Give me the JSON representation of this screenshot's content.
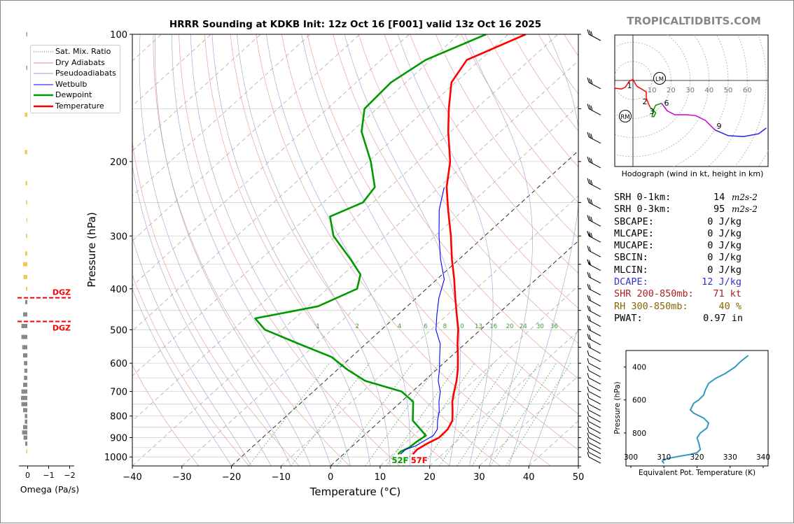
{
  "title": "HRRR Sounding at KDKB Init: 12z Oct 16 [F001] valid 13z Oct 16 2025",
  "brand": "TROPICALTIDBITS.COM",
  "legend": [
    "Sat. Mix. Ratio",
    "Dry Adiabats",
    "Pseudoadiabats",
    "Wetbulb",
    "Dewpoint",
    "Temperature"
  ],
  "chart_data": [
    {
      "type": "line",
      "title": "HRRR Sounding at KDKB Init: 12z Oct 16 [F001] valid 13z Oct 16 2025",
      "xlabel": "Temperature (°C)",
      "ylabel": "Pressure (hPa)",
      "xlim": [
        -40,
        50
      ],
      "ylim": [
        1050,
        100
      ],
      "y_scale": "log",
      "x_ticks": [
        -40,
        -30,
        -20,
        -10,
        0,
        10,
        20,
        30,
        40,
        50
      ],
      "y_ticks": [
        100,
        200,
        300,
        400,
        500,
        600,
        700,
        800,
        900,
        1000
      ],
      "skew": "skew-T",
      "surface_labels": {
        "dewpoint": "52F",
        "temperature": "57F"
      },
      "mixing_ratio_labels": [
        "1",
        "2",
        "4",
        "6",
        "8",
        "10",
        "13",
        "16",
        "20",
        "24",
        "30",
        "36"
      ],
      "series": [
        {
          "name": "Temperature",
          "color": "#ff0000",
          "p": [
            985,
            960,
            930,
            900,
            860,
            820,
            780,
            740,
            700,
            660,
            620,
            580,
            540,
            500,
            460,
            420,
            380,
            340,
            300,
            260,
            230,
            200,
            170,
            150,
            130,
            115,
            100
          ],
          "t": [
            14,
            13.8,
            14.5,
            15.6,
            15.5,
            14.5,
            12.5,
            10.3,
            8.4,
            6.5,
            4.2,
            1.5,
            -1.5,
            -4.5,
            -8.2,
            -12.2,
            -16.5,
            -21.5,
            -26.8,
            -33.2,
            -38.5,
            -43.5,
            -50.5,
            -55.5,
            -60.8,
            -62.7,
            -56.5
          ]
        },
        {
          "name": "Dewpoint",
          "color": "#009900",
          "p": [
            985,
            970,
            950,
            920,
            890,
            860,
            820,
            780,
            740,
            700,
            660,
            620,
            580,
            540,
            500,
            470,
            440,
            400,
            370,
            340,
            300,
            270,
            250,
            230,
            200,
            170,
            150,
            130,
            115,
            100
          ],
          "t": [
            11,
            11,
            11.8,
            12,
            12.5,
            10,
            6.5,
            4.5,
            2.4,
            -2.2,
            -12,
            -18.2,
            -24,
            -33.5,
            -43.5,
            -48,
            -38,
            -34,
            -36.5,
            -42,
            -50.5,
            -55.5,
            -52,
            -53,
            -59.5,
            -68,
            -72.5,
            -73,
            -71,
            -64.5
          ]
        },
        {
          "name": "Wetbulb",
          "color": "#0000ff",
          "p": [
            985,
            960,
            940,
            920,
            890,
            860,
            820,
            780,
            740,
            700,
            660,
            620,
            580,
            540,
            500,
            460,
            420,
            380,
            340,
            300,
            260,
            230
          ],
          "t": [
            11.5,
            11.5,
            12.8,
            13.2,
            14,
            13.4,
            11.5,
            9.8,
            7.6,
            5.6,
            2.8,
            0.5,
            -2.2,
            -5,
            -9,
            -12.2,
            -15.5,
            -18.5,
            -23.8,
            -29.2,
            -35,
            -39
          ]
        }
      ]
    },
    {
      "type": "line",
      "title": "Hodograph (wind in kt, height in km)",
      "x_ticks": [
        "10",
        "20",
        "30",
        "40",
        "50",
        "60"
      ],
      "annotations": [
        "LM",
        "RM",
        "1",
        "2",
        "3",
        "6",
        "9"
      ]
    },
    {
      "type": "line",
      "title": "",
      "xlabel": "Equivalent Pot. Temperature (K)",
      "ylabel": "Pressure (hPa)",
      "xlim": [
        300,
        340
      ],
      "ylim": [
        1000,
        300
      ],
      "x_ticks": [
        300,
        310,
        320,
        330,
        340
      ],
      "y_ticks": [
        400,
        600,
        800
      ],
      "series": [
        {
          "name": "",
          "color": "#3399bb",
          "p": [
            985,
            970,
            955,
            940,
            930,
            920,
            900,
            860,
            830,
            800,
            770,
            740,
            710,
            680,
            660,
            640,
            620,
            600,
            570,
            540,
            500,
            470,
            440,
            400,
            370,
            330
          ],
          "theta_e": [
            310,
            309.5,
            311,
            315,
            318,
            320,
            321,
            320.5,
            320,
            321,
            323,
            323.5,
            322,
            319,
            318,
            318.5,
            319,
            320.5,
            322,
            322.5,
            323.5,
            325.5,
            328.5,
            331.5,
            333,
            335.5
          ]
        }
      ]
    },
    {
      "type": "bar",
      "xlabel": "Omega (Pa/s)",
      "x_ticks": [
        "0",
        "−1",
        "−2"
      ],
      "annotations": [
        "DGZ",
        "DGZ"
      ]
    }
  ],
  "params": [
    {
      "label": "SRH 0-1km:",
      "value": "14",
      "unit": "m2s-2",
      "color": "#000000"
    },
    {
      "label": "SRH 0-3km:",
      "value": "95",
      "unit": "m2s-2",
      "color": "#000000"
    },
    {
      "label": "SBCAPE:",
      "value": "0 J/kg",
      "color": "#000000"
    },
    {
      "label": "MLCAPE:",
      "value": "0 J/kg",
      "color": "#000000"
    },
    {
      "label": "MUCAPE:",
      "value": "0 J/kg",
      "color": "#000000"
    },
    {
      "label": "SBCIN:",
      "value": "0 J/kg",
      "color": "#000000"
    },
    {
      "label": "MLCIN:",
      "value": "0 J/kg",
      "color": "#000000"
    },
    {
      "label": "DCAPE:",
      "value": "12 J/kg",
      "color": "#3333cc"
    },
    {
      "label": "SHR 200-850mb:",
      "value": "71 kt",
      "color": "#aa2222"
    },
    {
      "label": "RH 300-850mb:",
      "value": "40 %",
      "color": "#886600"
    },
    {
      "label": "PWAT:",
      "value": "0.97 in",
      "color": "#000000"
    }
  ]
}
